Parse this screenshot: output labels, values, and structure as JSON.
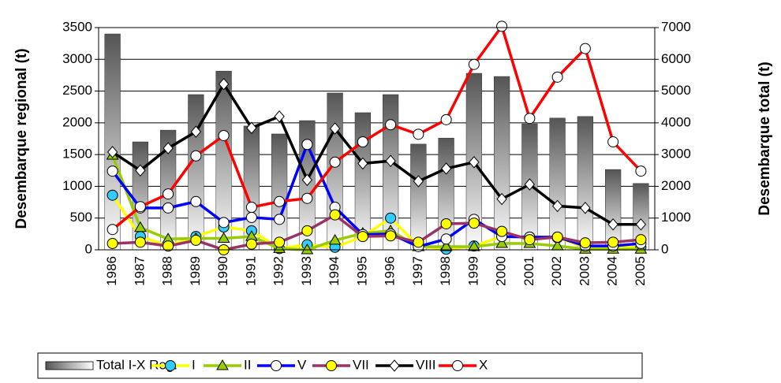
{
  "chart_data": {
    "type": "bar-line",
    "y_label": "Desembarque regional (t)",
    "y2_label": "Desembarque total (t)",
    "categories": [
      "1986",
      "1987",
      "1988",
      "1989",
      "1990",
      "1991",
      "1992",
      "1993",
      "1994",
      "1995",
      "1996",
      "1997",
      "1998",
      "1999",
      "2000",
      "2001",
      "2002",
      "2003",
      "2004",
      "2005"
    ],
    "ylim": [
      0,
      3500
    ],
    "yticks": [
      0,
      500,
      1000,
      1500,
      2000,
      2500,
      3000,
      3500
    ],
    "y2lim": [
      0,
      7000
    ],
    "y2ticks": [
      0,
      1000,
      2000,
      3000,
      4000,
      5000,
      6000,
      7000
    ],
    "series": [
      {
        "name": "Total I-X Reg.",
        "type": "bar",
        "axis": "y2",
        "color": "#555555",
        "values": [
          6800,
          3400,
          3770,
          4890,
          5630,
          3900,
          3650,
          4070,
          4940,
          4320,
          4890,
          3330,
          3520,
          5560,
          5460,
          3970,
          4150,
          4200,
          2530,
          2090
        ]
      },
      {
        "name": "I",
        "type": "line",
        "color": "#ffff00",
        "marker": "circle",
        "marker_color": "#33ccff",
        "values": [
          860,
          210,
          60,
          210,
          360,
          300,
          20,
          80,
          40,
          210,
          500,
          60,
          10,
          60,
          210,
          200,
          190,
          40,
          40,
          40
        ]
      },
      {
        "name": "II",
        "type": "line",
        "color": "#99cc00",
        "marker": "triangle",
        "marker_color": "#99cc00",
        "values": [
          1490,
          350,
          170,
          180,
          180,
          210,
          20,
          0,
          150,
          260,
          300,
          50,
          50,
          50,
          100,
          100,
          60,
          10,
          10,
          10
        ]
      },
      {
        "name": "V",
        "type": "line",
        "color": "#0000ff",
        "marker": "circle",
        "marker_color": "#ffffff",
        "values": [
          1240,
          660,
          660,
          760,
          430,
          510,
          480,
          1660,
          670,
          240,
          250,
          50,
          170,
          480,
          210,
          200,
          200,
          60,
          60,
          100
        ]
      },
      {
        "name": "VII",
        "type": "line",
        "color": "#993366",
        "marker": "circle",
        "marker_color": "#ffff00",
        "values": [
          100,
          120,
          60,
          150,
          0,
          90,
          120,
          300,
          550,
          210,
          220,
          120,
          410,
          420,
          290,
          160,
          200,
          110,
          120,
          160
        ]
      },
      {
        "name": "VIII",
        "type": "line",
        "color": "#000000",
        "marker": "diamond",
        "marker_color": "#ffffff",
        "values": [
          1540,
          1250,
          1600,
          1860,
          2610,
          1920,
          2100,
          1100,
          1910,
          1360,
          1400,
          1080,
          1280,
          1380,
          800,
          1030,
          690,
          660,
          400,
          400
        ]
      },
      {
        "name": "X",
        "type": "line",
        "color": "#ff0000",
        "marker": "circle",
        "marker_color": "#ffffff",
        "values": [
          320,
          680,
          880,
          1480,
          1800,
          670,
          760,
          810,
          1380,
          1700,
          1970,
          1820,
          2050,
          2920,
          3520,
          2070,
          2720,
          3170,
          1700,
          1240
        ]
      }
    ]
  }
}
